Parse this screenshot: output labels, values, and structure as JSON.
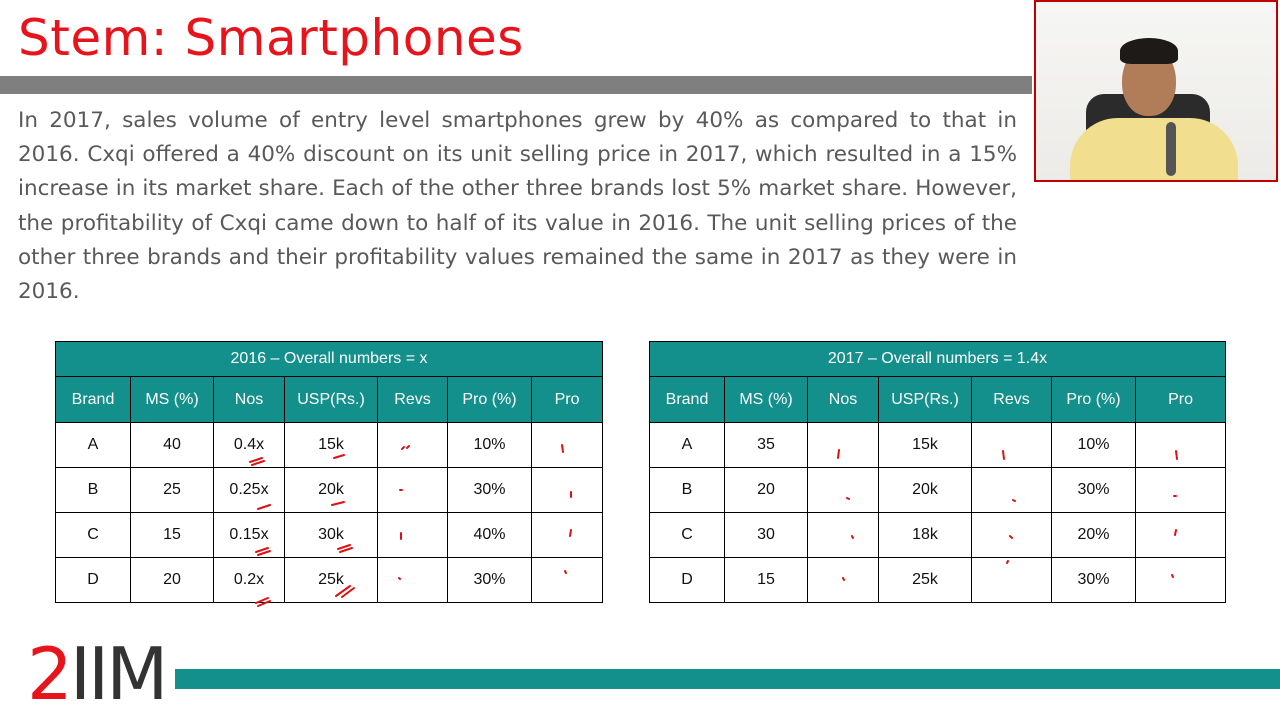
{
  "slide": {
    "title": "Stem: Smartphones",
    "paragraph": "In 2017, sales volume of entry level smartphones grew by 40% as compared to that in 2016. Cxqi offered a 40% discount on its unit selling price in 2017, which resulted in a 15% increase in its market share. Each of the other three brands lost 5% market share. However, the profitability of Cxqi came down to half of its value in 2016. The unit selling prices of the other three brands and their profitability values remained the same in 2017 as they were in 2016."
  },
  "table_2016": {
    "caption": "2016 – Overall numbers = x",
    "headers": [
      "Brand",
      "MS (%)",
      "Nos",
      "USP(Rs.)",
      "Revs",
      "Pro (%)",
      "Pro"
    ],
    "rows": [
      [
        "A",
        "40",
        "0.4x",
        "15k",
        "",
        "10%",
        ""
      ],
      [
        "B",
        "25",
        "0.25x",
        "20k",
        "",
        "30%",
        ""
      ],
      [
        "C",
        "15",
        "0.15x",
        "30k",
        "",
        "40%",
        ""
      ],
      [
        "D",
        "20",
        "0.2x",
        "25k",
        "",
        "30%",
        ""
      ]
    ]
  },
  "table_2017": {
    "caption": "2017 – Overall numbers = 1.4x",
    "headers": [
      "Brand",
      "MS (%)",
      "Nos",
      "USP(Rs.)",
      "Revs",
      "Pro (%)",
      "Pro"
    ],
    "rows": [
      [
        "A",
        "35",
        "",
        "15k",
        "",
        "10%",
        ""
      ],
      [
        "B",
        "20",
        "",
        "20k",
        "",
        "30%",
        ""
      ],
      [
        "C",
        "30",
        "",
        "18k",
        "",
        "20%",
        ""
      ],
      [
        "D",
        "15",
        "",
        "25k",
        "",
        "30%",
        ""
      ]
    ]
  },
  "logo": {
    "digit": "2",
    "letters": "IIM"
  },
  "colors": {
    "title_red": "#e8141b",
    "teal": "#138f8c",
    "gray_bar": "#7f7f7f",
    "ink_red": "#e01010"
  }
}
